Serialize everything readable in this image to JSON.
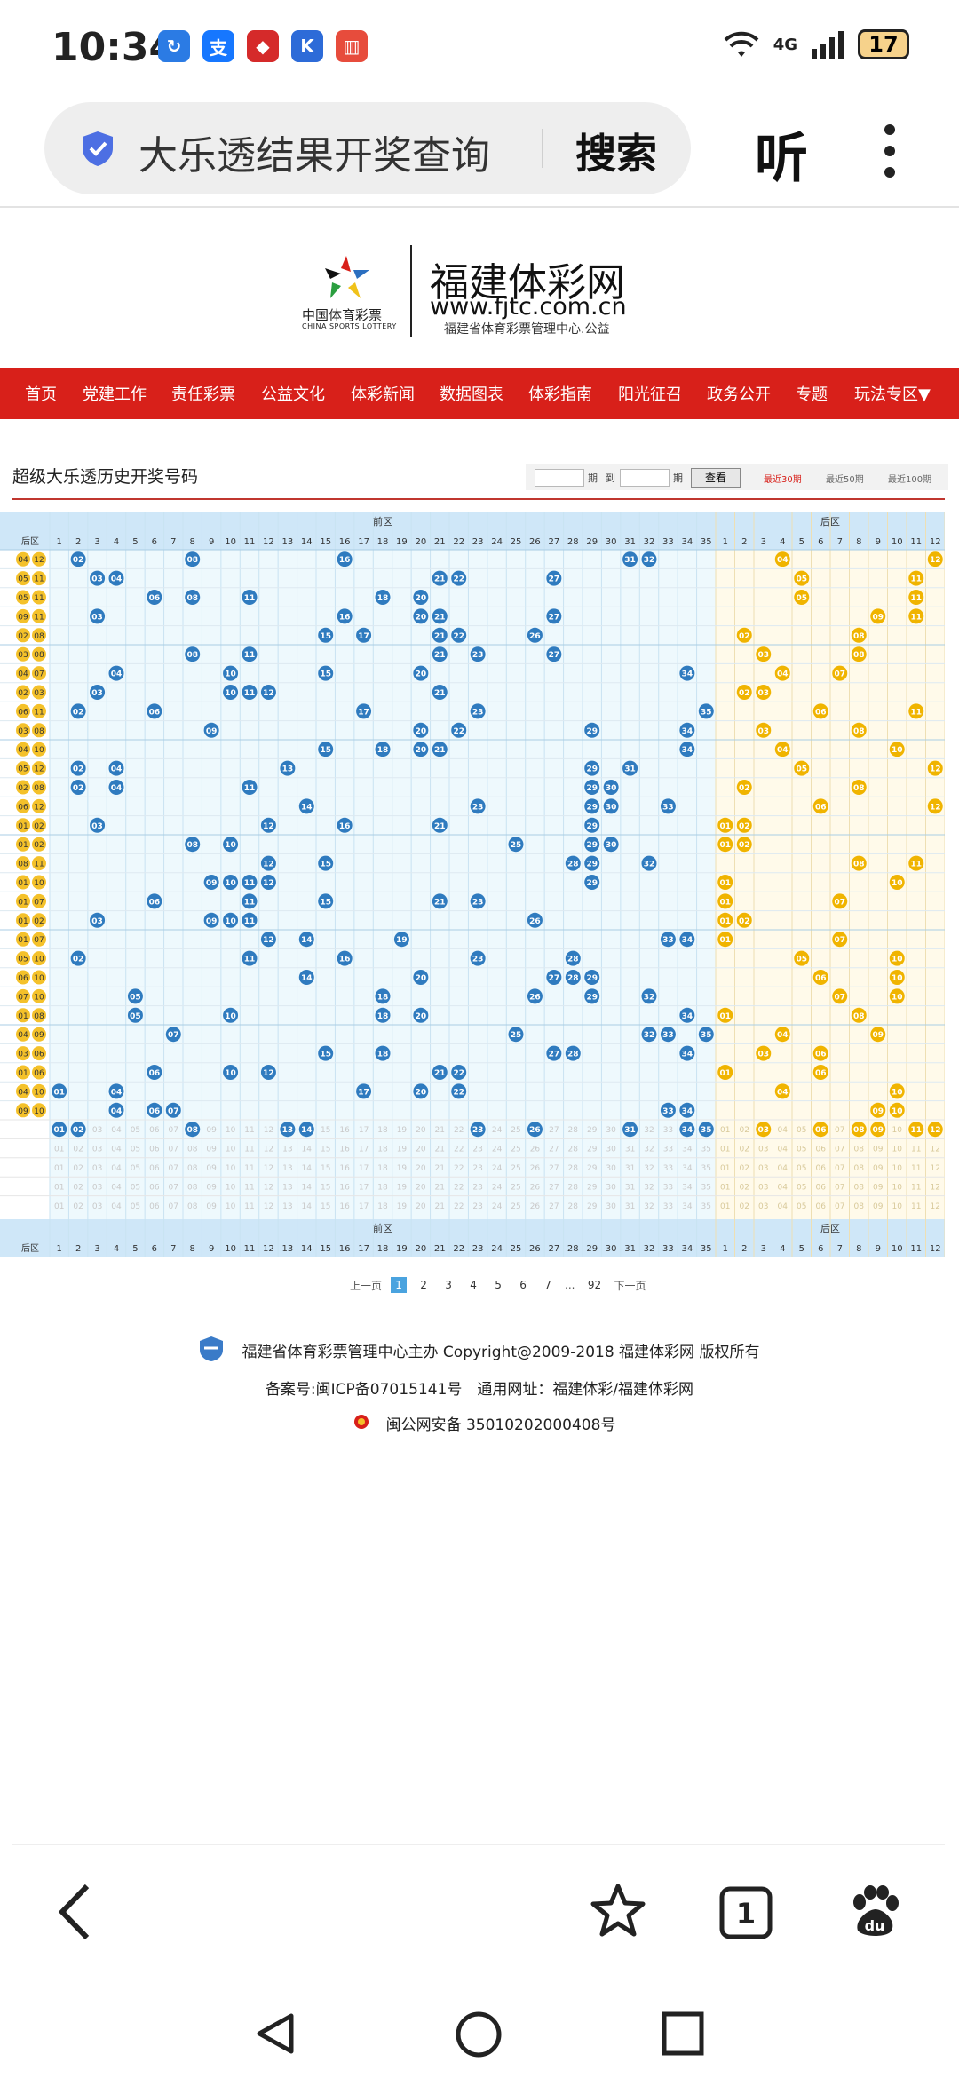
{
  "status": {
    "time": "10:34",
    "network": "4G",
    "battery": "17"
  },
  "address": {
    "query": "大乐透结果开奖查询",
    "search_label": "搜索",
    "listen_label": "听"
  },
  "site": {
    "logo_cn": "中国体育彩票",
    "logo_en": "CHINA SPORTS LOTTERY",
    "title": "福建体彩网",
    "url": "www.fjtc.com.cn",
    "subtitle": "福建省体育彩票管理中心.公益"
  },
  "nav": [
    "首页",
    "党建工作",
    "责任彩票",
    "公益文化",
    "体彩新闻",
    "数据图表",
    "体彩指南",
    "阳光征召",
    "政务公开",
    "专题",
    "玩法专区▼"
  ],
  "page": {
    "heading": "超级大乐透历史开奖号码",
    "filter": {
      "label_qi": "期",
      "label_to": "到",
      "label_qi2": "期",
      "button": "查看",
      "recent_30": "最近30期",
      "recent_50": "最近50期",
      "recent_100": "最近100期"
    }
  },
  "table": {
    "front_label": "前区",
    "back_label": "后区",
    "rear_col": "后区",
    "front_cols": [
      "1",
      "2",
      "3",
      "4",
      "5",
      "6",
      "7",
      "8",
      "9",
      "10",
      "11",
      "12",
      "13",
      "14",
      "15",
      "16",
      "17",
      "18",
      "19",
      "20",
      "21",
      "22",
      "23",
      "24",
      "25",
      "26",
      "27",
      "28",
      "29",
      "30",
      "31",
      "32",
      "33",
      "34",
      "35"
    ],
    "back_cols": [
      "1",
      "2",
      "3",
      "4",
      "5",
      "6",
      "7",
      "8",
      "9",
      "10",
      "11",
      "12"
    ],
    "rows": [
      {
        "front": [
          "02",
          "08",
          "16",
          "31",
          "32"
        ],
        "back": [
          "04",
          "12"
        ]
      },
      {
        "front": [
          "03",
          "04",
          "21",
          "22",
          "27"
        ],
        "back": [
          "05",
          "11"
        ]
      },
      {
        "front": [
          "06",
          "08",
          "11",
          "18",
          "20"
        ],
        "back": [
          "05",
          "11"
        ]
      },
      {
        "front": [
          "03",
          "16",
          "20",
          "21",
          "27"
        ],
        "back": [
          "09",
          "11"
        ]
      },
      {
        "front": [
          "15",
          "17",
          "21",
          "22",
          "26"
        ],
        "back": [
          "02",
          "08"
        ]
      },
      {
        "front": [
          "08",
          "11",
          "21",
          "23",
          "27"
        ],
        "back": [
          "03",
          "08"
        ]
      },
      {
        "front": [
          "04",
          "10",
          "15",
          "20",
          "34"
        ],
        "back": [
          "04",
          "07"
        ]
      },
      {
        "front": [
          "03",
          "10",
          "11",
          "12",
          "21"
        ],
        "back": [
          "02",
          "03"
        ]
      },
      {
        "front": [
          "02",
          "06",
          "17",
          "23",
          "35"
        ],
        "back": [
          "06",
          "11"
        ]
      },
      {
        "front": [
          "09",
          "20",
          "22",
          "29",
          "34"
        ],
        "back": [
          "03",
          "08"
        ]
      },
      {
        "front": [
          "15",
          "18",
          "20",
          "21",
          "34"
        ],
        "back": [
          "04",
          "10"
        ]
      },
      {
        "front": [
          "02",
          "04",
          "13",
          "29",
          "31"
        ],
        "back": [
          "05",
          "12"
        ]
      },
      {
        "front": [
          "02",
          "04",
          "11",
          "29",
          "30"
        ],
        "back": [
          "02",
          "08"
        ]
      },
      {
        "front": [
          "14",
          "23",
          "29",
          "30",
          "33"
        ],
        "back": [
          "06",
          "12"
        ]
      },
      {
        "front": [
          "03",
          "12",
          "16",
          "21",
          "29"
        ],
        "back": [
          "01",
          "02"
        ]
      },
      {
        "front": [
          "08",
          "10",
          "25",
          "29",
          "30"
        ],
        "back": [
          "01",
          "02"
        ]
      },
      {
        "front": [
          "12",
          "15",
          "28",
          "29",
          "32"
        ],
        "back": [
          "08",
          "11"
        ]
      },
      {
        "front": [
          "09",
          "10",
          "11",
          "12",
          "29"
        ],
        "back": [
          "01",
          "10"
        ]
      },
      {
        "front": [
          "06",
          "11",
          "15",
          "21",
          "23"
        ],
        "back": [
          "01",
          "07"
        ]
      },
      {
        "front": [
          "03",
          "09",
          "10",
          "11",
          "26"
        ],
        "back": [
          "01",
          "02"
        ]
      },
      {
        "front": [
          "12",
          "14",
          "19",
          "33",
          "34"
        ],
        "back": [
          "01",
          "07"
        ]
      },
      {
        "front": [
          "02",
          "11",
          "16",
          "23",
          "28"
        ],
        "back": [
          "05",
          "10"
        ]
      },
      {
        "front": [
          "14",
          "20",
          "27",
          "28",
          "29"
        ],
        "back": [
          "06",
          "10"
        ]
      },
      {
        "front": [
          "05",
          "18",
          "26",
          "29",
          "32"
        ],
        "back": [
          "07",
          "10"
        ]
      },
      {
        "front": [
          "05",
          "10",
          "18",
          "20",
          "34"
        ],
        "back": [
          "01",
          "08"
        ]
      },
      {
        "front": [
          "07",
          "25",
          "32",
          "33",
          "35"
        ],
        "back": [
          "04",
          "09"
        ]
      },
      {
        "front": [
          "15",
          "18",
          "27",
          "28",
          "34"
        ],
        "back": [
          "03",
          "06"
        ]
      },
      {
        "front": [
          "06",
          "10",
          "12",
          "21",
          "22"
        ],
        "back": [
          "01",
          "06"
        ]
      },
      {
        "front": [
          "01",
          "04",
          "17",
          "20",
          "22"
        ],
        "back": [
          "04",
          "10"
        ]
      },
      {
        "front": [
          "04",
          "06",
          "07",
          "33",
          "34"
        ],
        "back": [
          "09",
          "10"
        ]
      }
    ],
    "stats": {
      "front": [
        "01",
        "02",
        "08",
        "13",
        "14",
        "23",
        "26",
        "31",
        "34",
        "35"
      ],
      "back": [
        "03",
        "06",
        "08",
        "09",
        "11",
        "12"
      ]
    }
  },
  "pagination": {
    "prev": "上一页",
    "pages": [
      "1",
      "2",
      "3",
      "4",
      "5",
      "6",
      "7"
    ],
    "ellipsis": "...",
    "last": "92",
    "next": "下一页"
  },
  "footer": {
    "line1": "福建省体育彩票管理中心主办 Copyright@2009-2018 福建体彩网 版权所有",
    "line2": "备案号:闽ICP备07015141号　通用网址：福建体彩/福建体彩网",
    "line3": "闽公网安备 35010202000408号"
  },
  "browser_nav": {
    "tab_count": "1"
  },
  "colors": {
    "nav_red": "#d8201a",
    "ball_blue": "#2f7bbf",
    "ball_yellow": "#f4c12a",
    "front_bg": "#eef9fd",
    "back_bg": "#fffaea"
  }
}
